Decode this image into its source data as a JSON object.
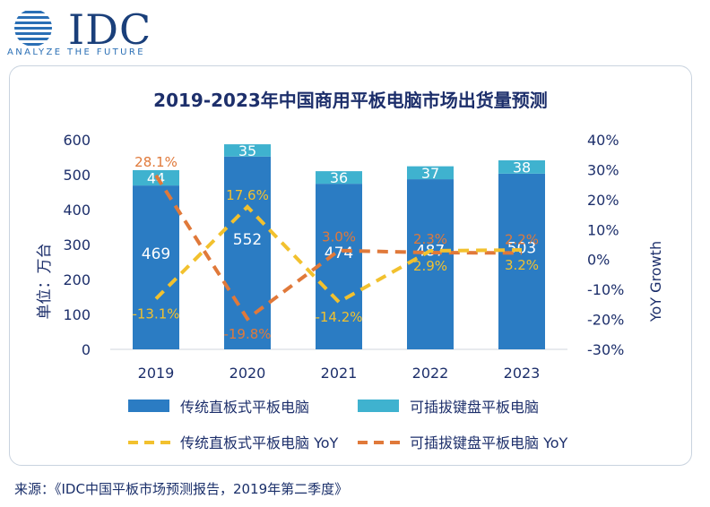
{
  "logo": {
    "name": "IDC",
    "tagline": "ANALYZE THE FUTURE"
  },
  "colors": {
    "bar_traditional": "#2b7cc3",
    "bar_keyboard": "#3fb2cf",
    "line_traditional": "#f2c12e",
    "line_keyboard": "#e0793a",
    "title": "#1d2f6b",
    "axis_text": "#1d2f6b"
  },
  "chart_data": {
    "type": "bar",
    "title": "2019-2023年中国商用平板电脑市场出货量预测",
    "categories": [
      "2019",
      "2020",
      "2021",
      "2022",
      "2023"
    ],
    "ylabel": "单位：万台",
    "y2label": "YoY Growth",
    "ylim": [
      0,
      600
    ],
    "y2lim": [
      -30,
      40
    ],
    "yticks": [
      "0",
      "100",
      "200",
      "300",
      "400",
      "500",
      "600"
    ],
    "y2ticks": [
      "-30%",
      "-20%",
      "-10%",
      "0%",
      "10%",
      "20%",
      "30%",
      "40%"
    ],
    "stacked": true,
    "series": [
      {
        "name": "传统直板式平板电脑",
        "kind": "bar",
        "values": [
          469,
          552,
          474,
          487,
          503
        ],
        "labels": [
          "469",
          "552",
          "474",
          "487",
          "503"
        ]
      },
      {
        "name": "可插拔键盘平板电脑",
        "kind": "bar",
        "values": [
          44,
          35,
          36,
          37,
          38
        ],
        "labels": [
          "44",
          "35",
          "36",
          "37",
          "38"
        ]
      },
      {
        "name": "传统直板式平板电脑 YoY",
        "kind": "line",
        "axis": "right",
        "values": [
          -13.1,
          17.6,
          -14.2,
          2.9,
          3.2
        ],
        "labels": [
          "-13.1%",
          "17.6%",
          "-14.2%",
          "2.9%",
          "3.2%"
        ]
      },
      {
        "name": "可插拔键盘平板电脑 YoY",
        "kind": "line",
        "axis": "right",
        "values": [
          28.1,
          -19.8,
          3.0,
          2.3,
          2.2
        ],
        "labels": [
          "28.1%",
          "-19.8%",
          "3.0%",
          "2.3%",
          "2.2%"
        ]
      }
    ],
    "legend_position": "bottom"
  },
  "footer": "来源：《IDC中国平板市场预测报告，2019年第二季度》"
}
